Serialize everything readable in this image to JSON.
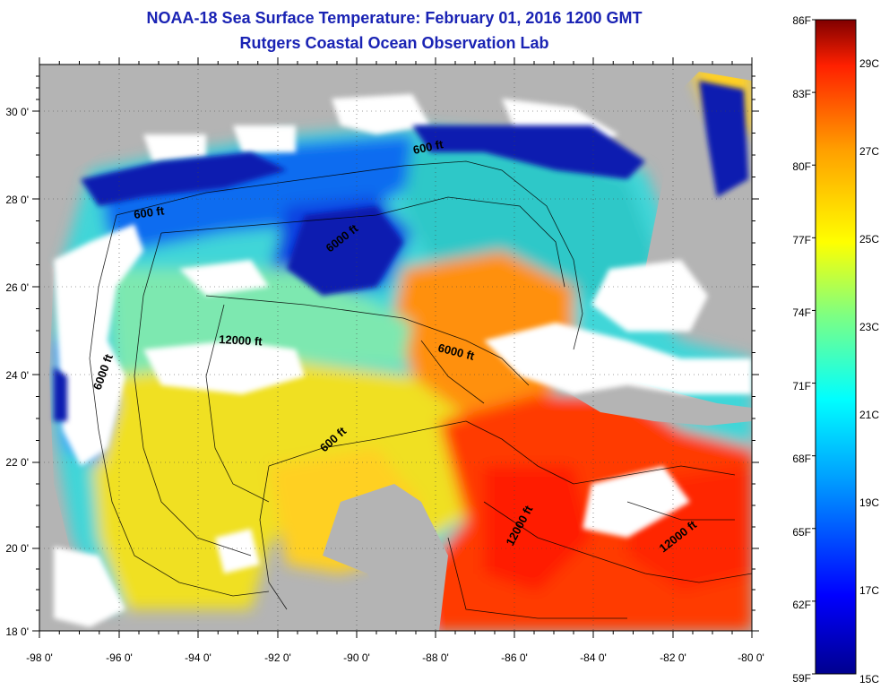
{
  "title": "NOAA-18 Sea Surface Temperature:  February 01, 2016 1200 GMT",
  "subtitle": "Rutgers Coastal Ocean Observation Lab",
  "lon_ticks": [
    "-98 0'",
    "-96 0'",
    "-94 0'",
    "-92 0'",
    "-90 0'",
    "-88 0'",
    "-86 0'",
    "-84 0'",
    "-82 0'",
    "-80 0'"
  ],
  "lat_ticks": [
    "18 0'",
    "20 0'",
    "22 0'",
    "24 0'",
    "26 0'",
    "28 0'",
    "30 0'"
  ],
  "colorbar": {
    "fahrenheit": [
      "86F",
      "83F",
      "80F",
      "77F",
      "74F",
      "71F",
      "68F",
      "65F",
      "62F",
      "59F"
    ],
    "celsius": [
      "29C",
      "27C",
      "25C",
      "23C",
      "21C",
      "19C",
      "17C",
      "15C"
    ],
    "colors": [
      "#00008f",
      "#0000ff",
      "#00a0ff",
      "#00ffff",
      "#80ff80",
      "#ffff00",
      "#ffa000",
      "#ff2000",
      "#800000"
    ]
  },
  "depth_labels": [
    "600 ft",
    "600 ft",
    "6000 ft",
    "12000 ft",
    "6000 ft",
    "6000 ft",
    "600 ft",
    "12000 ft",
    "12000 ft"
  ],
  "colors": {
    "land": "#b4b4b4",
    "cloud": "#ffffff",
    "title": "#1a23b4"
  }
}
